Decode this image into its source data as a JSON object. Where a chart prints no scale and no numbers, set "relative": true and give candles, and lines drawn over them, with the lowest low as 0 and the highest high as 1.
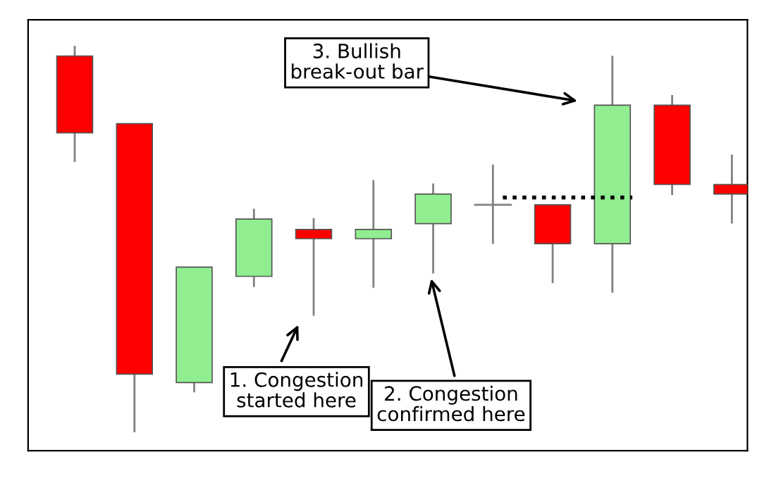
{
  "chart_data": {
    "type": "candlestick",
    "relative": true,
    "categories": [
      null,
      null,
      null,
      null,
      null,
      null,
      null,
      null,
      null,
      null,
      null,
      null
    ],
    "ohlc": [
      [
        0.976,
        1.0,
        0.703,
        0.776
      ],
      [
        0.8,
        0.8,
        0.0,
        0.149
      ],
      [
        0.127,
        0.427,
        0.104,
        0.427
      ],
      [
        0.403,
        0.576,
        0.378,
        0.552
      ],
      [
        0.525,
        0.552,
        0.303,
        0.501
      ],
      [
        0.501,
        0.651,
        0.376,
        0.525
      ],
      [
        0.54,
        0.642,
        0.413,
        0.617
      ],
      [
        0.589,
        0.691,
        0.49,
        0.589
      ],
      [
        0.589,
        0.589,
        0.388,
        0.488
      ],
      [
        0.488,
        0.974,
        0.363,
        0.848
      ],
      [
        0.848,
        0.872,
        0.617,
        0.642
      ],
      [
        0.642,
        0.717,
        0.543,
        0.617
      ]
    ],
    "colors": [
      "#ff0000",
      "#ff0000",
      "#90ee90",
      "#90ee90",
      "#ff0000",
      "#90ee90",
      "#90ee90",
      "#808080",
      "#ff0000",
      "#90ee90",
      "#ff0000",
      "#ff0000"
    ],
    "ref_lines": [
      {
        "axis": "y",
        "value": 0.608,
        "color": "#000000",
        "line_style": "dotted"
      }
    ],
    "annotations": [
      "1. Congestion\nstarted here",
      "2. Congestion\nconfirmed here",
      "3. Bullish\nbreak-out bar"
    ],
    "grid": false,
    "legend": false
  }
}
